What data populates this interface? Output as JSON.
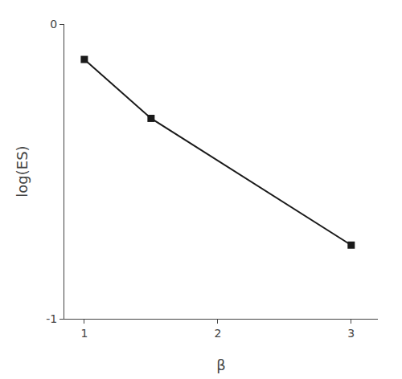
{
  "chart_data": {
    "type": "line",
    "x": [
      1,
      1.5,
      3
    ],
    "values": [
      -0.12,
      -0.32,
      -0.75
    ],
    "color": "#1a1a1a",
    "marker": "square",
    "xlabel": "β",
    "ylabel": "log(ES)",
    "xlim": [
      0.85,
      3.2
    ],
    "ylim": [
      -1.0,
      0.0
    ],
    "xticks": [
      1,
      2,
      3
    ],
    "yticks": [
      -1,
      0
    ],
    "grid": false
  }
}
